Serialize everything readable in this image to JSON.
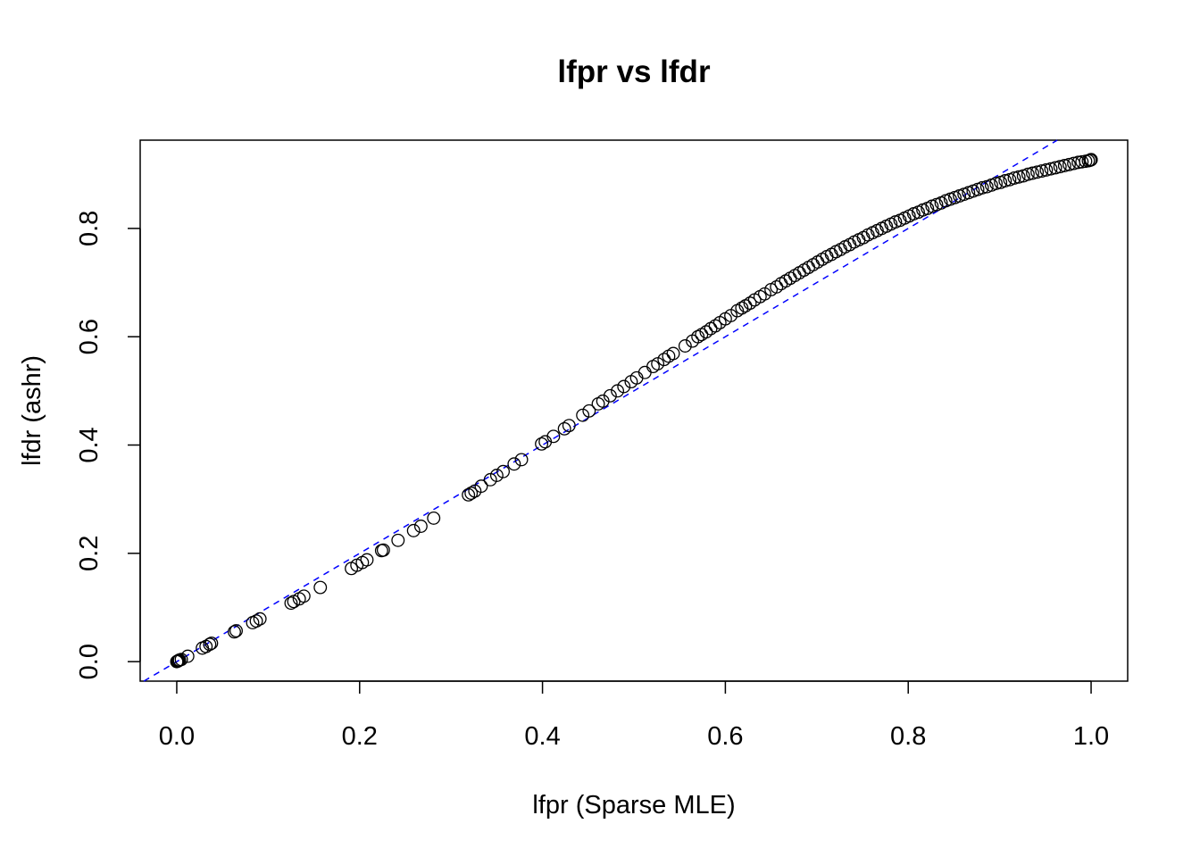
{
  "chart_data": {
    "type": "scatter",
    "title": "lfpr vs lfdr",
    "xlabel": "lfpr (Sparse MLE)",
    "ylabel": "lfdr (ashr)",
    "xlim": [
      -0.04,
      1.04
    ],
    "ylim": [
      -0.036,
      0.963
    ],
    "xticks": [
      0.0,
      0.2,
      0.4,
      0.6,
      0.8,
      1.0
    ],
    "yticks": [
      0.0,
      0.2,
      0.4,
      0.6,
      0.8
    ],
    "xtick_labels": [
      "0.0",
      "0.2",
      "0.4",
      "0.6",
      "0.8",
      "1.0"
    ],
    "ytick_labels": [
      "0.0",
      "0.2",
      "0.4",
      "0.6",
      "0.8"
    ],
    "grid": false,
    "marker": "open-circle",
    "marker_color": "#000000",
    "reference_line": {
      "kind": "y=x",
      "style": "dashed",
      "color": "#0000ff"
    },
    "points": [
      [
        0.0,
        0.0
      ],
      [
        0.001,
        0.001
      ],
      [
        0.002,
        0.002
      ],
      [
        0.003,
        0.003
      ],
      [
        0.005,
        0.004
      ],
      [
        0.012,
        0.01
      ],
      [
        0.028,
        0.025
      ],
      [
        0.032,
        0.028
      ],
      [
        0.036,
        0.032
      ],
      [
        0.038,
        0.034
      ],
      [
        0.063,
        0.055
      ],
      [
        0.065,
        0.057
      ],
      [
        0.083,
        0.072
      ],
      [
        0.087,
        0.075
      ],
      [
        0.091,
        0.079
      ],
      [
        0.125,
        0.108
      ],
      [
        0.128,
        0.111
      ],
      [
        0.134,
        0.116
      ],
      [
        0.139,
        0.121
      ],
      [
        0.157,
        0.137
      ],
      [
        0.191,
        0.172
      ],
      [
        0.197,
        0.178
      ],
      [
        0.203,
        0.183
      ],
      [
        0.208,
        0.188
      ],
      [
        0.224,
        0.205
      ],
      [
        0.226,
        0.206
      ],
      [
        0.242,
        0.224
      ],
      [
        0.259,
        0.242
      ],
      [
        0.267,
        0.25
      ],
      [
        0.281,
        0.265
      ],
      [
        0.319,
        0.308
      ],
      [
        0.322,
        0.311
      ],
      [
        0.326,
        0.315
      ],
      [
        0.333,
        0.324
      ],
      [
        0.343,
        0.336
      ],
      [
        0.35,
        0.344
      ],
      [
        0.357,
        0.351
      ],
      [
        0.369,
        0.365
      ],
      [
        0.377,
        0.373
      ],
      [
        0.399,
        0.402
      ],
      [
        0.403,
        0.406
      ],
      [
        0.412,
        0.416
      ],
      [
        0.424,
        0.43
      ],
      [
        0.429,
        0.436
      ],
      [
        0.444,
        0.455
      ],
      [
        0.451,
        0.463
      ],
      [
        0.461,
        0.476
      ],
      [
        0.466,
        0.481
      ],
      [
        0.474,
        0.491
      ],
      [
        0.482,
        0.5
      ],
      [
        0.489,
        0.508
      ],
      [
        0.497,
        0.517
      ],
      [
        0.503,
        0.524
      ],
      [
        0.512,
        0.534
      ],
      [
        0.521,
        0.545
      ],
      [
        0.526,
        0.55
      ],
      [
        0.533,
        0.558
      ],
      [
        0.538,
        0.564
      ],
      [
        0.543,
        0.569
      ],
      [
        0.556,
        0.583
      ],
      [
        0.564,
        0.592
      ],
      [
        0.57,
        0.6
      ],
      [
        0.574,
        0.604
      ],
      [
        0.579,
        0.609
      ],
      [
        0.584,
        0.615
      ],
      [
        0.589,
        0.62
      ],
      [
        0.594,
        0.626
      ],
      [
        0.6,
        0.633
      ],
      [
        0.606,
        0.639
      ],
      [
        0.613,
        0.648
      ],
      [
        0.618,
        0.653
      ],
      [
        0.622,
        0.657
      ],
      [
        0.627,
        0.662
      ],
      [
        0.632,
        0.668
      ],
      [
        0.638,
        0.674
      ],
      [
        0.643,
        0.679
      ],
      [
        0.65,
        0.687
      ],
      [
        0.656,
        0.692
      ],
      [
        0.661,
        0.698
      ],
      [
        0.666,
        0.703
      ],
      [
        0.671,
        0.708
      ],
      [
        0.676,
        0.713
      ],
      [
        0.681,
        0.718
      ],
      [
        0.686,
        0.723
      ],
      [
        0.691,
        0.728
      ],
      [
        0.696,
        0.733
      ],
      [
        0.701,
        0.738
      ],
      [
        0.706,
        0.743
      ],
      [
        0.711,
        0.748
      ],
      [
        0.716,
        0.752
      ],
      [
        0.721,
        0.757
      ],
      [
        0.726,
        0.761
      ],
      [
        0.731,
        0.766
      ],
      [
        0.736,
        0.77
      ],
      [
        0.741,
        0.775
      ],
      [
        0.746,
        0.779
      ],
      [
        0.751,
        0.783
      ],
      [
        0.756,
        0.788
      ],
      [
        0.761,
        0.792
      ],
      [
        0.766,
        0.796
      ],
      [
        0.771,
        0.8
      ],
      [
        0.776,
        0.804
      ],
      [
        0.781,
        0.808
      ],
      [
        0.786,
        0.812
      ],
      [
        0.791,
        0.815
      ],
      [
        0.796,
        0.819
      ],
      [
        0.801,
        0.823
      ],
      [
        0.806,
        0.827
      ],
      [
        0.811,
        0.83
      ],
      [
        0.816,
        0.834
      ],
      [
        0.821,
        0.837
      ],
      [
        0.826,
        0.841
      ],
      [
        0.831,
        0.844
      ],
      [
        0.836,
        0.847
      ],
      [
        0.841,
        0.851
      ],
      [
        0.846,
        0.854
      ],
      [
        0.851,
        0.857
      ],
      [
        0.856,
        0.86
      ],
      [
        0.861,
        0.863
      ],
      [
        0.866,
        0.866
      ],
      [
        0.871,
        0.869
      ],
      [
        0.876,
        0.872
      ],
      [
        0.881,
        0.875
      ],
      [
        0.886,
        0.877
      ],
      [
        0.891,
        0.88
      ],
      [
        0.896,
        0.883
      ],
      [
        0.901,
        0.885
      ],
      [
        0.906,
        0.888
      ],
      [
        0.911,
        0.89
      ],
      [
        0.916,
        0.893
      ],
      [
        0.921,
        0.895
      ],
      [
        0.926,
        0.897
      ],
      [
        0.931,
        0.9
      ],
      [
        0.936,
        0.902
      ],
      [
        0.941,
        0.904
      ],
      [
        0.946,
        0.906
      ],
      [
        0.951,
        0.908
      ],
      [
        0.956,
        0.91
      ],
      [
        0.961,
        0.912
      ],
      [
        0.966,
        0.914
      ],
      [
        0.971,
        0.916
      ],
      [
        0.976,
        0.918
      ],
      [
        0.981,
        0.92
      ],
      [
        0.986,
        0.922
      ],
      [
        0.99,
        0.923
      ],
      [
        0.994,
        0.924
      ],
      [
        0.997,
        0.925
      ],
      [
        0.999,
        0.926
      ],
      [
        1.0,
        0.927
      ],
      [
        1.0,
        0.927
      ]
    ]
  }
}
